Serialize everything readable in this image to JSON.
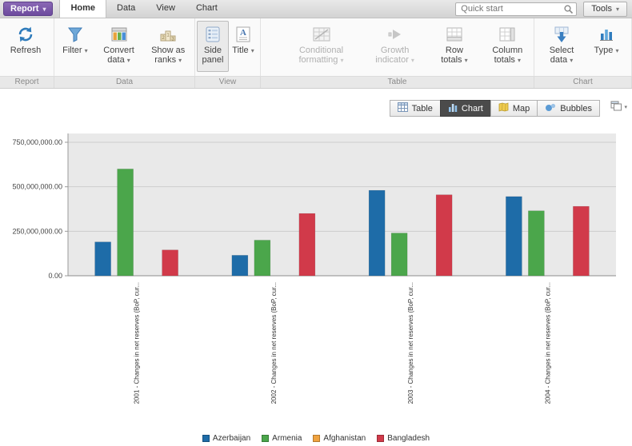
{
  "glyphs": {
    "dropdown": "▾"
  },
  "topbar": {
    "report_label": "Report",
    "tabs": [
      "Home",
      "Data",
      "View",
      "Chart"
    ],
    "active_tab": "Home",
    "search_placeholder": "Quick start",
    "tools_label": "Tools"
  },
  "ribbon": {
    "groups": [
      {
        "label": "Report",
        "buttons": [
          {
            "label": "Refresh",
            "icon": "refresh-icon",
            "dropdown": false,
            "disabled": false,
            "selected": false
          }
        ]
      },
      {
        "label": "Data",
        "buttons": [
          {
            "label": "Filter",
            "icon": "filter-icon",
            "dropdown": true,
            "disabled": false,
            "selected": false
          },
          {
            "label": "Convert data",
            "icon": "convert-data-icon",
            "dropdown": true,
            "disabled": false,
            "selected": false
          },
          {
            "label": "Show as ranks",
            "icon": "show-as-ranks-icon",
            "dropdown": true,
            "disabled": false,
            "selected": false
          }
        ]
      },
      {
        "label": "View",
        "buttons": [
          {
            "label": "Side panel",
            "icon": "side-panel-icon",
            "dropdown": false,
            "disabled": false,
            "selected": true
          },
          {
            "label": "Title",
            "icon": "title-icon",
            "dropdown": true,
            "disabled": false,
            "selected": false
          }
        ]
      },
      {
        "label": "Table",
        "buttons": [
          {
            "label": "Conditional formatting",
            "icon": "conditional-formatting-icon",
            "dropdown": true,
            "disabled": true,
            "selected": false
          },
          {
            "label": "Growth indicator",
            "icon": "growth-indicator-icon",
            "dropdown": true,
            "disabled": true,
            "selected": false
          },
          {
            "label": "Row totals",
            "icon": "row-totals-icon",
            "dropdown": true,
            "disabled": false,
            "selected": false
          },
          {
            "label": "Column totals",
            "icon": "column-totals-icon",
            "dropdown": true,
            "disabled": false,
            "selected": false
          }
        ]
      },
      {
        "label": "Chart",
        "buttons": [
          {
            "label": "Select data",
            "icon": "select-data-icon",
            "dropdown": true,
            "disabled": false,
            "selected": false
          },
          {
            "label": "Type",
            "icon": "type-icon",
            "dropdown": true,
            "disabled": false,
            "selected": false
          }
        ]
      }
    ]
  },
  "view_switcher": {
    "items": [
      "Table",
      "Chart",
      "Map",
      "Bubbles"
    ],
    "active": "Chart"
  },
  "chart_data": {
    "type": "bar",
    "title": "",
    "categories": [
      "2001 - Changes in net reserves (BoP, cur...",
      "2002 - Changes in net reserves (BoP, cur...",
      "2003 - Changes in net reserves (BoP, cur...",
      "2004 - Changes in net reserves (BoP, cur..."
    ],
    "series": [
      {
        "name": "Azerbaijan",
        "color": "#1E6CA8",
        "values": [
          190000000,
          115000000,
          480000000,
          445000000
        ]
      },
      {
        "name": "Armenia",
        "color": "#4BA64B",
        "values": [
          600000000,
          200000000,
          240000000,
          365000000
        ]
      },
      {
        "name": "Afghanistan",
        "color": "#F0A33F",
        "values": [
          0,
          0,
          0,
          0
        ]
      },
      {
        "name": "Bangladesh",
        "color": "#D13A4A",
        "values": [
          145000000,
          350000000,
          455000000,
          390000000
        ]
      }
    ],
    "ylim": [
      0,
      750000000
    ],
    "yticks": [
      0,
      250000000,
      500000000,
      750000000
    ],
    "ytick_labels": [
      "0.00",
      "250,000,000.00",
      "500,000,000.00",
      "750,000,000.00"
    ],
    "grid": true,
    "legend_position": "bottom"
  }
}
